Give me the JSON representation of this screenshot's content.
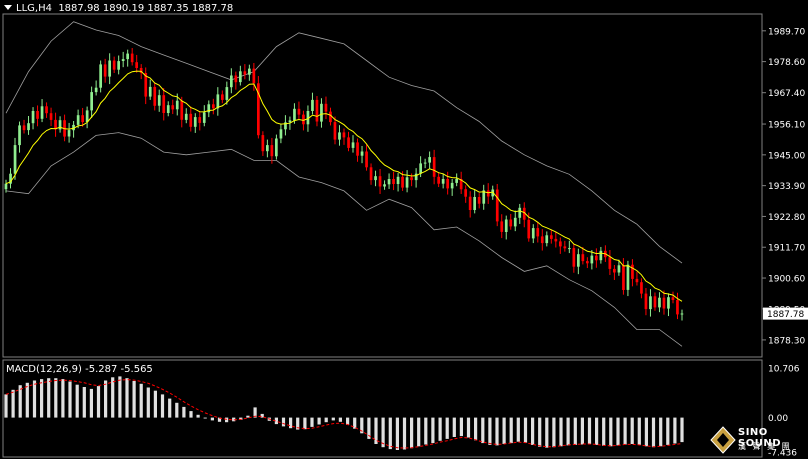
{
  "header": {
    "symbol": "LLG,H4",
    "ohlc": "1887.98 1890.19 1887.35 1887.78"
  },
  "macd_header": {
    "label": "MACD(12,26,9)",
    "values": "-5.287 -5.565"
  },
  "logo": {
    "line1": "SINO SOUND",
    "line2": "漢 聲 集 團"
  },
  "colors": {
    "background": "#000000",
    "bull": "#90ee90",
    "bear": "#ff0000",
    "ma": "#ffff00",
    "band": "#a0a0a0",
    "macd_hist": "#e0e0e0",
    "macd_signal": "#ff0000",
    "current_price_box": "#ffffff"
  },
  "chart_data": [
    {
      "type": "candlestick",
      "title": "LLG,H4",
      "ylim": [
        1872.5,
        1995.4
      ],
      "y_ticks": [
        1989.7,
        1978.6,
        1967.4,
        1956.1,
        1945.0,
        1933.9,
        1922.8,
        1911.7,
        1900.6,
        1889.5,
        1878.3
      ],
      "y_tick_labels": [
        "1989.70",
        "1978.60",
        "1967.40",
        "1956.10",
        "1945.00",
        "1933.90",
        "1922.80",
        "1911.70",
        "1900.60",
        "1889.50",
        "1878.30"
      ],
      "current_price": 1887.78,
      "current_price_label": "1887.78",
      "overlays": [
        "Bollinger Bands",
        "Moving Average"
      ],
      "close": [
        1934.6,
        1938.2,
        1948.5,
        1955.6,
        1953.9,
        1956.4,
        1960.8,
        1958.0,
        1962.5,
        1960.0,
        1957.6,
        1954.2,
        1957.5,
        1951.6,
        1953.9,
        1955.8,
        1959.3,
        1956.8,
        1961.0,
        1967.6,
        1969.2,
        1977.6,
        1973.2,
        1979.0,
        1975.7,
        1978.8,
        1979.5,
        1981.5,
        1978.4,
        1976.3,
        1974.5,
        1966.0,
        1969.5,
        1962.7,
        1966.5,
        1960.1,
        1962.9,
        1961.4,
        1964.5,
        1957.6,
        1959.8,
        1955.1,
        1958.6,
        1956.5,
        1960.3,
        1963.2,
        1961.8,
        1966.8,
        1964.8,
        1969.4,
        1973.6,
        1971.2,
        1975.1,
        1973.9,
        1976.1,
        1970.8,
        1952.1,
        1946.3,
        1948.5,
        1944.5,
        1950.9,
        1954.2,
        1956.7,
        1957.4,
        1961.6,
        1959.5,
        1956.0,
        1960.8,
        1964.8,
        1957.0,
        1963.4,
        1960.6,
        1956.8,
        1950.5,
        1953.1,
        1951.3,
        1947.5,
        1949.5,
        1944.7,
        1946.2,
        1940.5,
        1935.9,
        1937.3,
        1933.6,
        1934.4,
        1936.3,
        1934.5,
        1937.1,
        1933.2,
        1936.9,
        1935.9,
        1938.2,
        1941.9,
        1942.2,
        1944.2,
        1937.1,
        1934.6,
        1936.3,
        1932.9,
        1934.9,
        1936.3,
        1932.6,
        1929.9,
        1925.1,
        1929.8,
        1927.4,
        1932.2,
        1930.0,
        1932.5,
        1921.0,
        1917.2,
        1921.7,
        1919.2,
        1922.3,
        1925.9,
        1921.6,
        1914.9,
        1918.6,
        1915.6,
        1913.2,
        1916.0,
        1914.7,
        1913.8,
        1912.0,
        1911.3,
        1911.4,
        1904.7,
        1909.2,
        1906.7,
        1905.9,
        1908.7,
        1907.0,
        1910.4,
        1908.1,
        1903.9,
        1902.6,
        1905.2,
        1896.3,
        1905.4,
        1900.3,
        1899.1,
        1895.0,
        1889.4,
        1894.0,
        1890.0,
        1893.5,
        1889.6,
        1893.7,
        1892.7,
        1887.5,
        1887.8
      ],
      "bollinger_upper_approx": [
        1960,
        1975,
        1986,
        1993,
        1990,
        1988,
        1984,
        1981,
        1978,
        1975,
        1972,
        1975,
        1984,
        1989,
        1987,
        1985,
        1979,
        1973,
        1970,
        1968,
        1962,
        1957,
        1950,
        1945,
        1941,
        1938,
        1932,
        1925,
        1920,
        1912,
        1906
      ],
      "bollinger_lower_approx": [
        1932,
        1931,
        1941,
        1946,
        1952,
        1953,
        1951,
        1946,
        1945,
        1946,
        1947,
        1943,
        1943,
        1937,
        1935,
        1932,
        1925,
        1929,
        1926,
        1918,
        1919,
        1914,
        1908,
        1903,
        1905,
        1900,
        1896,
        1890,
        1882,
        1882,
        1876
      ],
      "ma_note": "yellow moving average through closes"
    },
    {
      "type": "macd",
      "title": "MACD(12,26,9)",
      "parameters": [
        12,
        26,
        9
      ],
      "last_macd": -5.287,
      "last_signal": -5.565,
      "ylim": [
        -7.436,
        10.706
      ],
      "y_tick_labels": [
        "10.706",
        "0.00",
        "-7.436"
      ],
      "histogram_approx": [
        5,
        6,
        7,
        7.5,
        8,
        8.3,
        8.5,
        8.5,
        8.3,
        7.8,
        7.1,
        6.6,
        6.2,
        6.8,
        8.0,
        8.7,
        8.9,
        8.5,
        7.9,
        7.3,
        6.5,
        5.8,
        5.0,
        4.1,
        3.2,
        2.3,
        1.4,
        0.6,
        -0.2,
        -0.6,
        -0.9,
        -1.0,
        -0.8,
        -0.5,
        0.4,
        2.2,
        0.8,
        -0.7,
        -1.4,
        -1.9,
        -2.3,
        -2.6,
        -2.5,
        -2.0,
        -1.5,
        -1.0,
        -0.6,
        -0.9,
        -1.6,
        -2.4,
        -3.4,
        -4.6,
        -5.7,
        -6.4,
        -6.8,
        -7.0,
        -6.9,
        -6.6,
        -6.2,
        -5.8,
        -5.5,
        -5.0,
        -4.6,
        -4.2,
        -4.0,
        -4.3,
        -4.9,
        -5.5,
        -5.9,
        -6.0,
        -5.7,
        -5.5,
        -5.2,
        -5.4,
        -5.9,
        -6.3,
        -6.5,
        -6.4,
        -6.2,
        -6.0,
        -5.9,
        -5.8,
        -5.7,
        -5.9,
        -6.1,
        -6.2,
        -6.0,
        -5.8,
        -5.7,
        -5.9,
        -6.2,
        -6.4,
        -6.2,
        -5.9,
        -5.6,
        -5.3
      ],
      "signal_approx": [
        5,
        5.5,
        6.1,
        6.7,
        7.2,
        7.5,
        7.8,
        8.0,
        8.1,
        8.0,
        7.8,
        7.5,
        7.1,
        6.9,
        7.2,
        7.7,
        8.1,
        8.2,
        8.1,
        7.8,
        7.4,
        6.8,
        6.1,
        5.3,
        4.4,
        3.4,
        2.5,
        1.7,
        1.0,
        0.4,
        -0.1,
        -0.4,
        -0.5,
        -0.4,
        -0.1,
        0.3,
        0.2,
        -0.3,
        -0.8,
        -1.3,
        -1.8,
        -2.2,
        -2.4,
        -2.3,
        -2.0,
        -1.6,
        -1.3,
        -1.2,
        -1.5,
        -2.1,
        -2.9,
        -3.9,
        -4.9,
        -5.6,
        -6.2,
        -6.5,
        -6.6,
        -6.5,
        -6.3,
        -6.0,
        -5.7,
        -5.3,
        -5.0,
        -4.6,
        -4.3,
        -4.4,
        -4.8,
        -5.3,
        -5.6,
        -5.8,
        -5.7,
        -5.5,
        -5.3,
        -5.4,
        -5.8,
        -6.1,
        -6.3,
        -6.3,
        -6.1,
        -5.9,
        -5.8,
        -5.7,
        -5.7,
        -5.8,
        -6.0,
        -6.1,
        -6.0,
        -5.8,
        -5.8,
        -5.9,
        -6.1,
        -6.3,
        -6.2,
        -6.0,
        -5.8,
        -5.6
      ]
    }
  ]
}
